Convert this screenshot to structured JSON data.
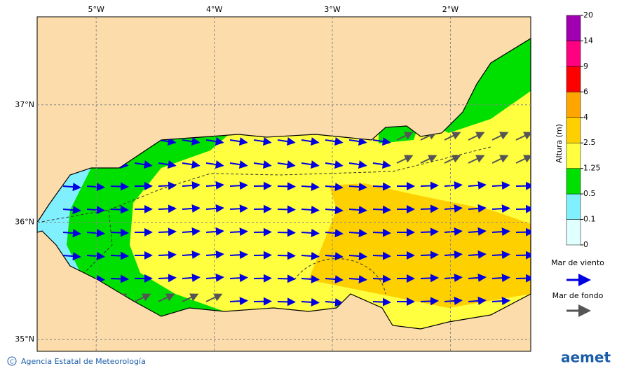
{
  "map": {
    "xlim": [
      -5.5,
      -1.32
    ],
    "ylim": [
      34.9,
      37.75
    ],
    "xticks": [
      {
        "value": -5,
        "label": "5°W"
      },
      {
        "value": -4,
        "label": "4°W"
      },
      {
        "value": -3,
        "label": "3°W"
      },
      {
        "value": -2,
        "label": "2°W"
      }
    ],
    "yticks": [
      {
        "value": 37,
        "label": "37°N"
      },
      {
        "value": 36,
        "label": "36°N"
      },
      {
        "value": 35,
        "label": "35°N"
      }
    ]
  },
  "colorbar": {
    "title": "Altura (m)",
    "levels": [
      0,
      0.1,
      0.5,
      1.25,
      2.5,
      4,
      6,
      9,
      14,
      20
    ],
    "colors": [
      "#e0ffff",
      "#80f0ff",
      "#00e000",
      "#ffff40",
      "#ffd000",
      "#ffa500",
      "#ff0000",
      "#ff0080",
      "#a000b0"
    ]
  },
  "legend": {
    "wind_sea": {
      "label": "Mar de viento",
      "color": "#0000e0"
    },
    "swell": {
      "label": "Mar de fondo",
      "color": "#555555"
    }
  },
  "footer": {
    "credit": "Agencia Estatal de Meteorología",
    "logo": "aemet"
  }
}
